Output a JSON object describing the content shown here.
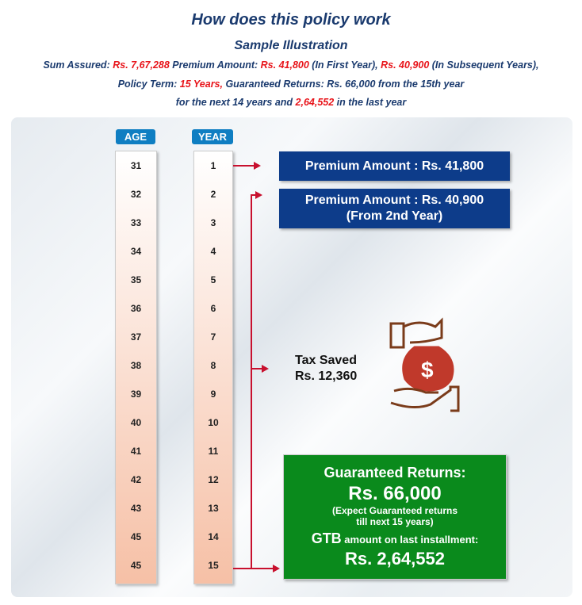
{
  "header": {
    "title": "How does this policy work",
    "subtitle": "Sample Illustration",
    "line1": [
      {
        "t": "Sum Assured: ",
        "red": false
      },
      {
        "t": "Rs. 7,67,288",
        "red": true
      },
      {
        "t": " Premium Amount: ",
        "red": false
      },
      {
        "t": "Rs. 41,800",
        "red": true
      },
      {
        "t": " (In First Year), ",
        "red": false
      },
      {
        "t": "Rs. 40,900",
        "red": true
      },
      {
        "t": " (In Subsequent Years),",
        "red": false
      }
    ],
    "line2": [
      {
        "t": "Policy Term: ",
        "red": false
      },
      {
        "t": "15 Years,",
        "red": true
      },
      {
        "t": " Guaranteed Returns: Rs. 66,000 from the 15th year",
        "red": false
      }
    ],
    "line3": [
      {
        "t": "for the next 14 years and ",
        "red": false
      },
      {
        "t": "2,64,552",
        "red": true
      },
      {
        "t": " in the last year",
        "red": false
      }
    ]
  },
  "columns": {
    "age_label": "AGE",
    "year_label": "YEAR",
    "ages": [
      "31",
      "32",
      "33",
      "34",
      "35",
      "36",
      "37",
      "38",
      "39",
      "40",
      "41",
      "42",
      "43",
      "45",
      "45"
    ],
    "years": [
      "1",
      "2",
      "3",
      "4",
      "5",
      "6",
      "7",
      "8",
      "9",
      "10",
      "11",
      "12",
      "13",
      "14",
      "15"
    ]
  },
  "boxes": {
    "premium1": "Premium Amount : Rs. 41,800",
    "premium2": "Premium Amount : Rs. 40,900",
    "premium2_note": "(From 2nd Year)",
    "tax_label": "Tax Saved",
    "tax_value": "Rs. 12,360",
    "gr_title": "Guaranteed Returns:",
    "gr_value": "Rs. 66,000",
    "gr_note1": "(Expect Guaranteed returns",
    "gr_note2": "till next 15 years)",
    "gtb": "GTB",
    "gtb_rest": " amount on last installment:",
    "gtb_value": "Rs. 2,64,552"
  },
  "colors": {
    "navy": "#0d3c8a",
    "green": "#0a8a1c",
    "red": "#e8141a",
    "icon": "#c0392b"
  },
  "icons": {
    "money": "money-bag-hand-icon"
  }
}
